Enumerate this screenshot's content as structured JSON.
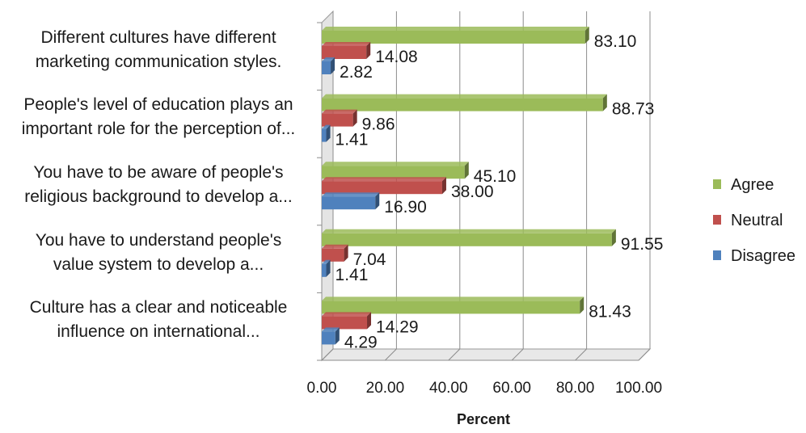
{
  "chart_data": {
    "type": "bar",
    "orientation": "horizontal",
    "title": "",
    "xlabel": "Percent",
    "ylabel": "",
    "xlim": [
      0,
      100
    ],
    "x_ticks": [
      "0.00",
      "20.00",
      "40.00",
      "60.00",
      "80.00",
      "100.00"
    ],
    "grid": true,
    "legend_position": "right",
    "categories": [
      [
        "Different cultures have different",
        "marketing communication styles."
      ],
      [
        "People's level of education plays an",
        "important role for the perception of..."
      ],
      [
        "You have to be aware of people's",
        "religious background to develop a..."
      ],
      [
        "You have to understand people's",
        "value system to develop a..."
      ],
      [
        "Culture has a clear and noticeable",
        "influence on international..."
      ]
    ],
    "series": [
      {
        "name": "Agree",
        "color": "#9bbb59",
        "values": [
          83.1,
          88.73,
          45.1,
          91.55,
          81.43
        ],
        "labels": [
          "83.10",
          "88.73",
          "45.10",
          "91.55",
          "81.43"
        ]
      },
      {
        "name": "Neutral",
        "color": "#c0504d",
        "values": [
          14.08,
          9.86,
          38.0,
          7.04,
          14.29
        ],
        "labels": [
          "14.08",
          "9.86",
          "38.00",
          "7.04",
          "14.29"
        ]
      },
      {
        "name": "Disagree",
        "color": "#4f81bd",
        "values": [
          2.82,
          1.41,
          16.9,
          1.41,
          4.29
        ],
        "labels": [
          "2.82",
          "1.41",
          "16.90",
          "1.41",
          "4.29"
        ]
      }
    ]
  }
}
